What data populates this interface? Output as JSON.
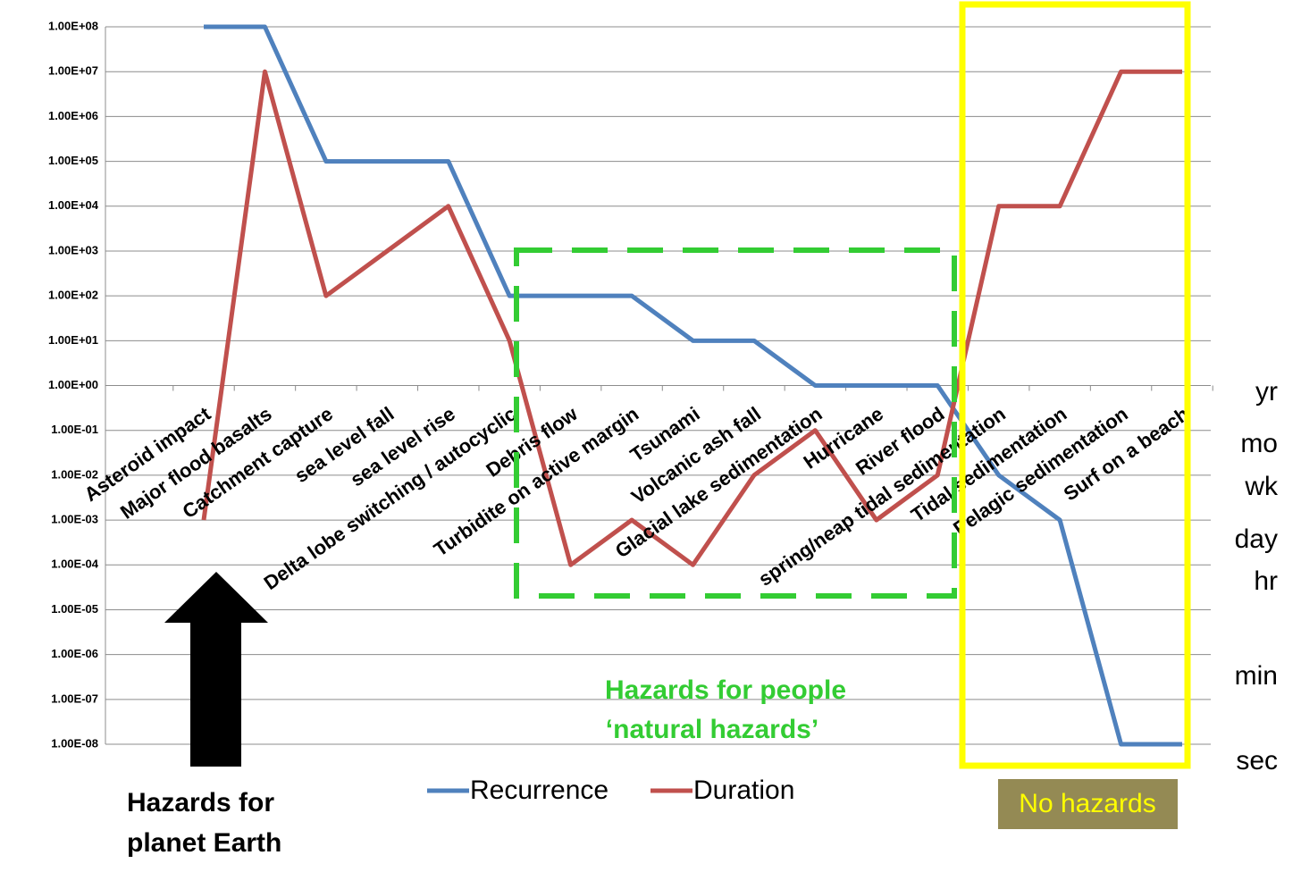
{
  "chart_data": {
    "type": "line",
    "categories": [
      "Asteroid impact",
      "Major flood basalts",
      "Catchment capture",
      "sea level fall",
      "sea level rise",
      "Delta lobe switching / autocyclic",
      "Debris flow",
      "Turbidite on active margin",
      "Tsunami",
      "Volcanic ash fall",
      "Glacial lake sedimentation",
      "Hurricane",
      "River flood",
      "spring/neap tidal sedimentation",
      "Tidal sedimentation",
      "Pelagic sedimentation",
      "Surf on a beach"
    ],
    "series": [
      {
        "name": "Recurrence",
        "color": "#4f81bd",
        "values": [
          100000000,
          100000000,
          100000,
          100000,
          100000,
          100,
          100,
          100,
          10,
          10,
          1,
          1,
          1,
          0.01,
          0.001,
          1e-08,
          1e-08
        ]
      },
      {
        "name": "Duration",
        "color": "#c0504d",
        "values": [
          0.001,
          10000000,
          100,
          1000,
          10000,
          10,
          0.0001,
          0.001,
          0.0001,
          0.01,
          0.1,
          0.001,
          0.01,
          10000,
          10000,
          10000000,
          10000000
        ]
      }
    ],
    "log_scale": true,
    "grid": true,
    "ylim": [
      1e-08,
      100000000
    ],
    "yticks": [
      {
        "value": 100000000,
        "label": "1.00E+08"
      },
      {
        "value": 10000000,
        "label": "1.00E+07"
      },
      {
        "value": 1000000,
        "label": "1.00E+06"
      },
      {
        "value": 100000,
        "label": "1.00E+05"
      },
      {
        "value": 10000,
        "label": "1.00E+04"
      },
      {
        "value": 1000,
        "label": "1.00E+03"
      },
      {
        "value": 100,
        "label": "1.00E+02"
      },
      {
        "value": 10,
        "label": "1.00E+01"
      },
      {
        "value": 1,
        "label": "1.00E+00"
      },
      {
        "value": 0.1,
        "label": "1.00E-01"
      },
      {
        "value": 0.01,
        "label": "1.00E-02"
      },
      {
        "value": 0.001,
        "label": "1.00E-03"
      },
      {
        "value": 0.0001,
        "label": "1.00E-04"
      },
      {
        "value": 1e-05,
        "label": "1.00E-05"
      },
      {
        "value": 1e-06,
        "label": "1.00E-06"
      },
      {
        "value": 1e-07,
        "label": "1.00E-07"
      },
      {
        "value": 1e-08,
        "label": "1.00E-08"
      }
    ],
    "right_labels": [
      "yr",
      "mo",
      "wk",
      "day",
      "hr",
      "min",
      "sec"
    ],
    "annotations": [
      "Hazards for people",
      "‘natural hazards’",
      "Hazards for",
      "planet Earth",
      "No hazards"
    ]
  }
}
